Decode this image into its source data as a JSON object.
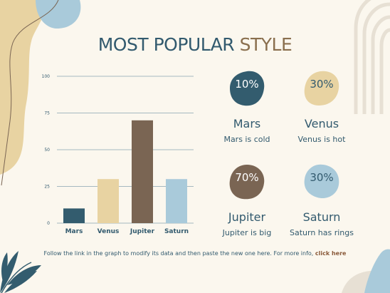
{
  "title": {
    "part1": "MOST POPULAR",
    "part2": "STYLE"
  },
  "colors": {
    "mars": "#335c6e",
    "venus": "#e8d3a2",
    "jupiter": "#7a6553",
    "saturn": "#a9cada",
    "text": "#325a6e",
    "accent": "#8a6f4e"
  },
  "chart_data": {
    "type": "bar",
    "categories": [
      "Mars",
      "Venus",
      "Jupiter",
      "Saturn"
    ],
    "values": [
      10,
      30,
      70,
      30
    ],
    "colors": [
      "#335c6e",
      "#e8d3a2",
      "#7a6553",
      "#a9cada"
    ],
    "ylim": [
      0,
      100
    ],
    "yticks": [
      "0",
      "25",
      "50",
      "75",
      "100"
    ],
    "grid": true,
    "title": "",
    "xlabel": "",
    "ylabel": ""
  },
  "stats": [
    {
      "value": "10%",
      "name": "Mars",
      "desc": "Mars is cold"
    },
    {
      "value": "30%",
      "name": "Venus",
      "desc": "Venus is hot"
    },
    {
      "value": "70%",
      "name": "Jupiter",
      "desc": "Jupiter is big"
    },
    {
      "value": "30%",
      "name": "Saturn",
      "desc": "Saturn has rings"
    }
  ],
  "footer": {
    "text": "Follow the link in the graph to modify its data and then paste the new one here. For more info, ",
    "link": "click here"
  }
}
